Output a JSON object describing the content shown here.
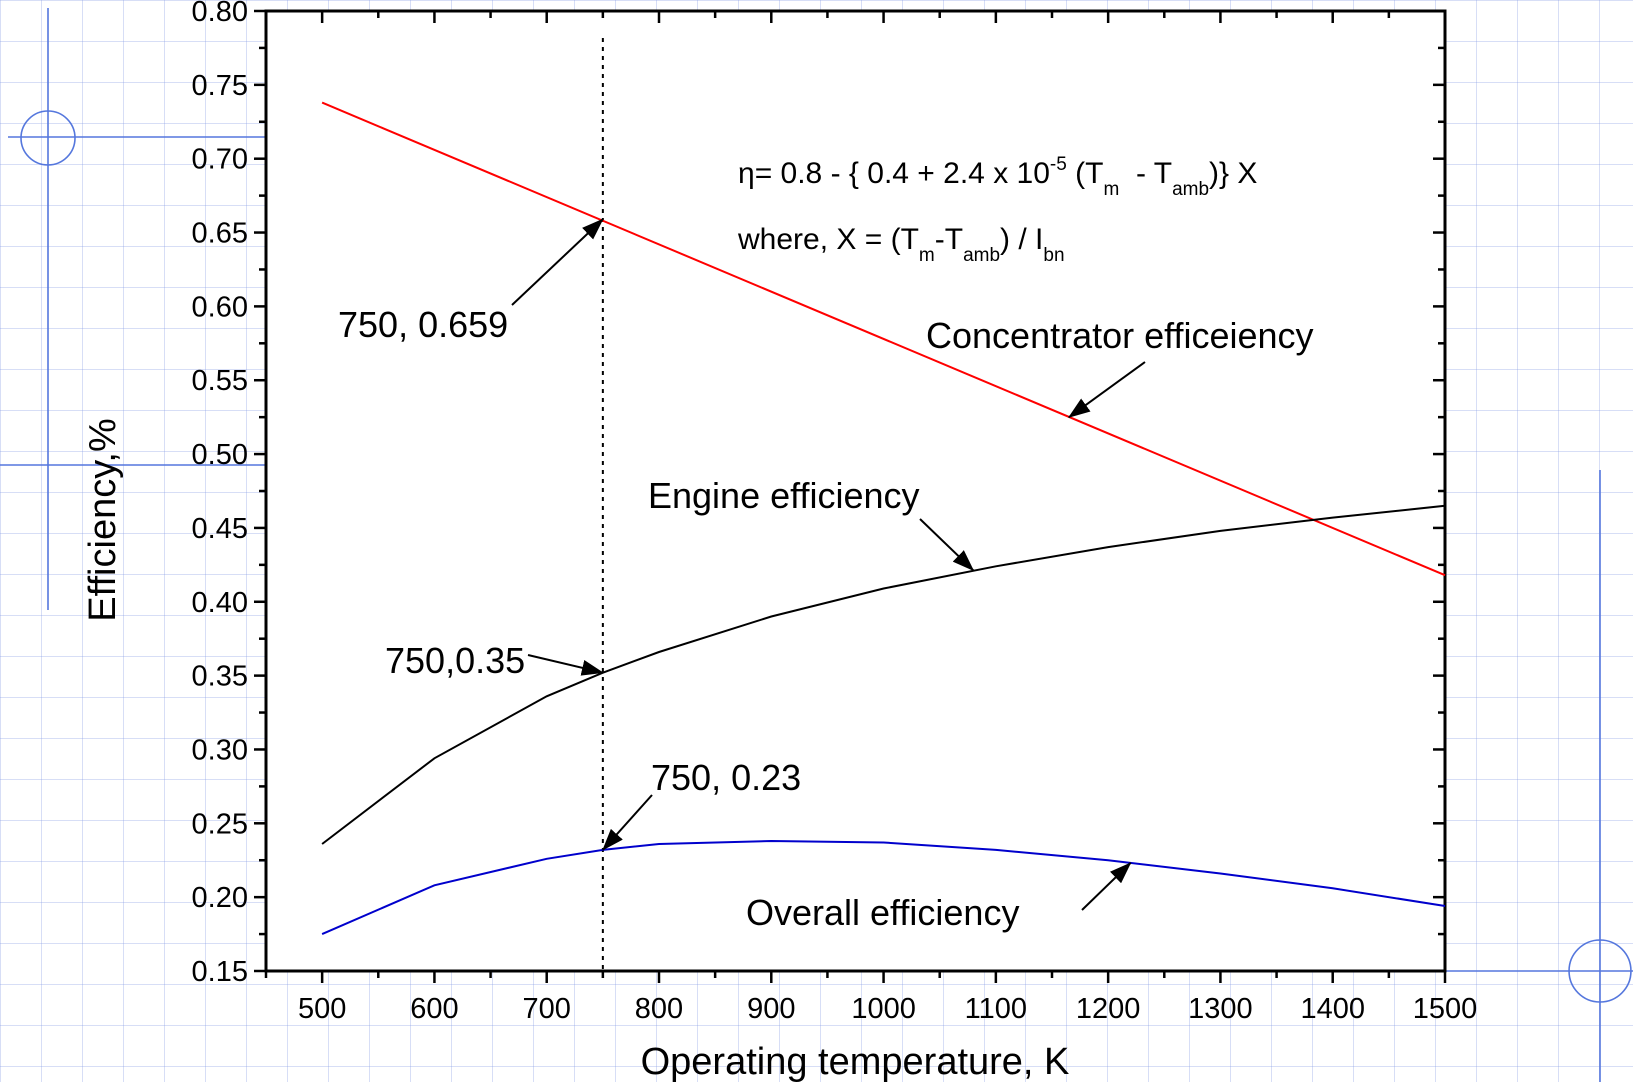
{
  "chart_data": {
    "type": "line",
    "xlabel": "Operating temperature, K",
    "ylabel": "Efficiency,%",
    "xlim": [
      450,
      1500
    ],
    "ylim": [
      0.15,
      0.8
    ],
    "x_ticks": [
      "500",
      "600",
      "700",
      "800",
      "900",
      "1000",
      "1100",
      "1200",
      "1300",
      "1400",
      "1500"
    ],
    "y_ticks": [
      "0.15",
      "0.20",
      "0.25",
      "0.30",
      "0.35",
      "0.40",
      "0.45",
      "0.50",
      "0.55",
      "0.60",
      "0.65",
      "0.70",
      "0.75",
      "0.80"
    ],
    "series": [
      {
        "color": "#ff0000",
        "x": [
          500,
          1500
        ],
        "values": [
          0.738,
          0.418
        ]
      },
      {
        "color": "#000000",
        "x": [
          500,
          600,
          700,
          750,
          800,
          900,
          1000,
          1100,
          1200,
          1300,
          1400,
          1500
        ],
        "values": [
          0.236,
          0.294,
          0.336,
          0.352,
          0.366,
          0.39,
          0.409,
          0.424,
          0.437,
          0.448,
          0.457,
          0.465
        ]
      },
      {
        "color": "#0000cc",
        "x": [
          500,
          600,
          700,
          750,
          800,
          900,
          1000,
          1100,
          1200,
          1300,
          1400,
          1500
        ],
        "values": [
          0.175,
          0.208,
          0.226,
          0.232,
          0.236,
          0.238,
          0.237,
          0.232,
          0.225,
          0.216,
          0.206,
          0.194
        ]
      }
    ],
    "reference_line": {
      "x": 750,
      "style": "dotted"
    },
    "annotations": {
      "concentrator_point": "750, 0.659",
      "engine_point": "750,0.35",
      "overall_point": "750, 0.23",
      "concentrator_label": "Concentrator efficeiency",
      "engine_label": "Engine efficiency",
      "overall_label": "Overall efficiency"
    },
    "formula": {
      "eta": "η",
      "line1_a": "= 0.8 - { 0.4 + 2.4 x 10",
      "exp": "-5",
      "line1_b": " (T",
      "sub_m": "m",
      "line1_c": "  - T",
      "sub_amb": "amb",
      "line1_d": ")} X",
      "line2_a": "where, X = (T",
      "line2_b": "-T",
      "line2_c": ") / I",
      "sub_bn": "bn"
    },
    "grid": false
  },
  "colors": {
    "template_lines": "#5577dd",
    "grid": "#b4c0ec"
  }
}
